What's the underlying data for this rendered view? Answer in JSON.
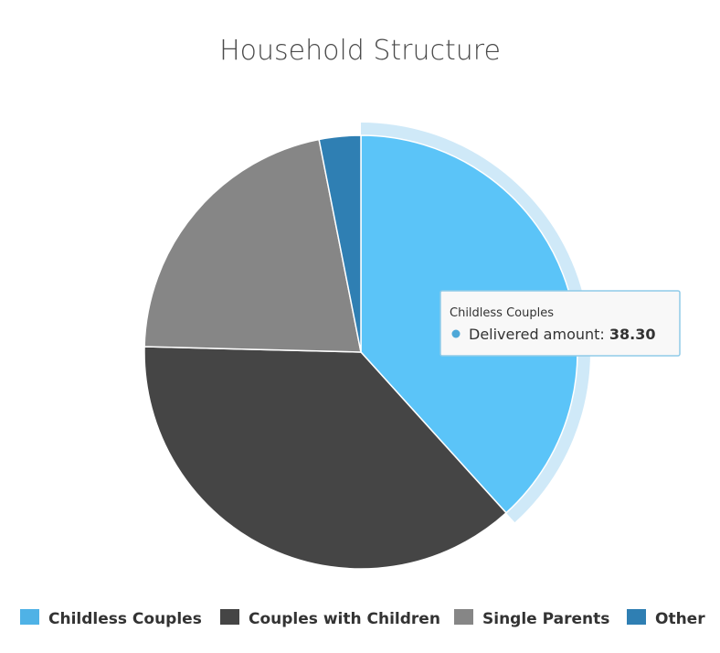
{
  "chart_data": {
    "type": "pie",
    "title": "Household Structure",
    "series_name": "Delivered amount",
    "categories": [
      "Childless Couples",
      "Couples with Children",
      "Single Parents",
      "Other"
    ],
    "values": [
      38.3,
      37.1,
      21.5,
      3.1
    ],
    "colors": [
      "#5bc4f8",
      "#454545",
      "#868686",
      "#2f7fb3"
    ],
    "hover_halo_color": "#cfe9f8",
    "legend_position": "bottom",
    "tooltip": {
      "category": "Childless Couples",
      "label": "Delivered amount",
      "value_text": "38.30",
      "marker_color": "#4ea8d8"
    }
  }
}
